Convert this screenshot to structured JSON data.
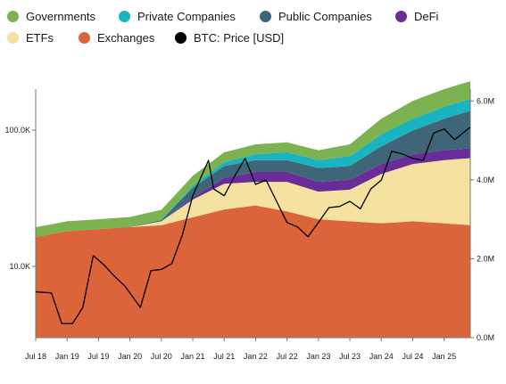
{
  "chart_data": {
    "type": "area",
    "title": "",
    "legend": {
      "placement": "top",
      "entries": [
        {
          "name": "Governments",
          "color": "#7cb24f"
        },
        {
          "name": "Private Companies",
          "color": "#19b4bf"
        },
        {
          "name": "Public Companies",
          "color": "#3f6678"
        },
        {
          "name": "DeFi",
          "color": "#6a2c96"
        },
        {
          "name": "ETFs",
          "color": "#f5e1a0"
        },
        {
          "name": "Exchanges",
          "color": "#dc643b"
        },
        {
          "name": "BTC: Price [USD]",
          "color": "#000000"
        }
      ]
    },
    "x_ticks": [
      "Jul 18",
      "Jan 19",
      "Jul 19",
      "Jan 20",
      "Jul 20",
      "Jan 21",
      "Jul 21",
      "Jan 22",
      "Jul 22",
      "Jan 23",
      "Jul 23",
      "Jan 24",
      "Jul 24",
      "Jan 25"
    ],
    "x": [
      "Jul 18",
      "Jan 19",
      "Jul 19",
      "Jan 20",
      "Jul 20",
      "Jan 21",
      "Jul 21",
      "Jan 22",
      "Jul 22",
      "Jan 23",
      "Jul 23",
      "Jan 24",
      "Jul 24",
      "Jan 25",
      "Jun 25"
    ],
    "y_left": {
      "scale": "log",
      "ticks": [
        {
          "value": 10000,
          "label": "10.0K"
        },
        {
          "value": 100000,
          "label": "100.0K"
        }
      ],
      "range": [
        3000,
        200000
      ]
    },
    "y_right": {
      "scale": "linear",
      "ticks": [
        {
          "value": 0,
          "label": "0.0M"
        },
        {
          "value": 2000000,
          "label": "2.0M"
        },
        {
          "value": 4000000,
          "label": "4.0M"
        },
        {
          "value": 6000000,
          "label": "6.0M"
        }
      ],
      "range": [
        0,
        6300000
      ]
    },
    "grid": false,
    "stacked_series": [
      {
        "name": "Exchanges",
        "values": [
          2550000,
          2700000,
          2750000,
          2800000,
          2850000,
          3050000,
          3250000,
          3350000,
          3200000,
          3000000,
          2950000,
          2900000,
          2950000,
          2900000,
          2850000
        ]
      },
      {
        "name": "ETFs",
        "values": [
          0,
          0,
          0,
          0,
          100000,
          450000,
          650000,
          600000,
          750000,
          700000,
          800000,
          1250000,
          1450000,
          1600000,
          1700000
        ]
      },
      {
        "name": "DeFi",
        "values": [
          0,
          0,
          0,
          0,
          0,
          50000,
          150000,
          250000,
          250000,
          250000,
          250000,
          250000,
          250000,
          250000,
          250000
        ]
      },
      {
        "name": "Public Companies",
        "values": [
          0,
          0,
          0,
          10000,
          30000,
          250000,
          300000,
          300000,
          300000,
          350000,
          350000,
          450000,
          600000,
          800000,
          950000
        ]
      },
      {
        "name": "Private Companies",
        "values": [
          0,
          0,
          0,
          0,
          10000,
          50000,
          100000,
          150000,
          200000,
          200000,
          250000,
          300000,
          300000,
          300000,
          300000
        ]
      },
      {
        "name": "Governments",
        "values": [
          250000,
          250000,
          250000,
          250000,
          250000,
          250000,
          250000,
          250000,
          250000,
          250000,
          300000,
          400000,
          450000,
          450000,
          450000
        ]
      }
    ],
    "price_series": {
      "name": "BTC: Price [USD]",
      "x": [
        "Jul 18",
        "Oct 18",
        "Dec 18",
        "Feb 19",
        "Apr 19",
        "Jun 19",
        "Aug 19",
        "Oct 19",
        "Dec 19",
        "Mar 20",
        "May 20",
        "Jul 20",
        "Sep 20",
        "Nov 20",
        "Jan 21",
        "Apr 21",
        "May 21",
        "Jul 21",
        "Sep 21",
        "Nov 21",
        "Jan 22",
        "Mar 22",
        "May 22",
        "Jul 22",
        "Sep 22",
        "Nov 22",
        "Jan 23",
        "Mar 23",
        "May 23",
        "Jul 23",
        "Sep 23",
        "Nov 23",
        "Jan 24",
        "Mar 24",
        "May 24",
        "Jul 24",
        "Sep 24",
        "Nov 24",
        "Jan 25",
        "Mar 25",
        "Jun 25"
      ],
      "values": [
        6500,
        6400,
        3800,
        3800,
        5000,
        12000,
        10300,
        8500,
        7200,
        5000,
        9300,
        9500,
        10500,
        17000,
        33000,
        60000,
        37000,
        33000,
        46000,
        62000,
        40000,
        43000,
        30000,
        21000,
        19500,
        16500,
        21000,
        27000,
        27500,
        30000,
        26500,
        37000,
        43000,
        70000,
        67000,
        62000,
        60000,
        95000,
        102000,
        85000,
        105000
      ]
    }
  }
}
